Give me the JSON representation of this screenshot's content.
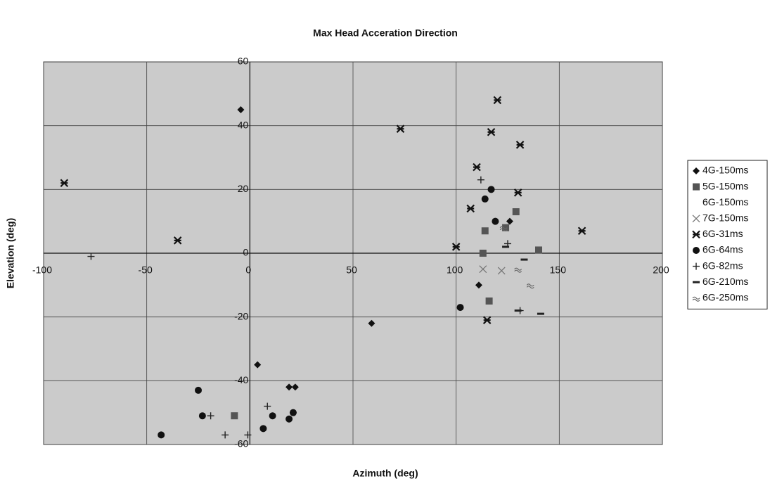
{
  "chart_data": {
    "type": "scatter",
    "title": "Max Head Acceration Direction",
    "x_label": "Azimuth (deg)",
    "y_label": "Elevation (deg)",
    "xlim": [
      -100,
      200
    ],
    "ylim": [
      -60,
      60
    ],
    "xticks": [
      -100,
      -50,
      0,
      50,
      100,
      150,
      200
    ],
    "yticks": [
      -60,
      -40,
      -20,
      0,
      20,
      40,
      60
    ],
    "grid": true,
    "legend": "right",
    "series": [
      {
        "name": "4G-150ms",
        "marker": "diamond",
        "color": "#111111",
        "x": [
          -4.4,
          59,
          3.7,
          111,
          126,
          19,
          22
        ],
        "y": [
          45,
          -22,
          -35,
          -10,
          10,
          -42,
          -42
        ]
      },
      {
        "name": "5G-150ms",
        "marker": "square",
        "color": "#555555",
        "x": [
          116,
          114,
          124,
          129,
          140,
          -7.5,
          113
        ],
        "y": [
          -15,
          7,
          8,
          13,
          1,
          -51,
          0
        ]
      },
      {
        "name": "6G-150ms",
        "marker": "none",
        "color": "#bbbbbb",
        "x": [],
        "y": []
      },
      {
        "name": "7G-150ms",
        "marker": "x",
        "color": "#777777",
        "x": [
          113,
          122
        ],
        "y": [
          -5,
          -5.5
        ]
      },
      {
        "name": "6G-31ms",
        "marker": "asterisk",
        "color": "#111111",
        "x": [
          -90,
          -35,
          73,
          100,
          107,
          110,
          117,
          120,
          131,
          130,
          161,
          115
        ],
        "y": [
          22,
          4,
          39,
          2,
          14,
          27,
          38,
          48,
          34,
          19,
          7,
          -21
        ]
      },
      {
        "name": "6G-64ms",
        "marker": "circle",
        "color": "#111111",
        "x": [
          117,
          114,
          119,
          102,
          -25,
          -23,
          -43,
          6.5,
          11,
          19,
          21
        ],
        "y": [
          20,
          17,
          10,
          -17,
          -43,
          -51,
          -57,
          -55,
          -51,
          -52,
          -50
        ]
      },
      {
        "name": "6G-82ms",
        "marker": "plus",
        "color": "#222222",
        "x": [
          -77,
          112,
          -19,
          8.5,
          -12,
          -1,
          131,
          125
        ],
        "y": [
          -1,
          23,
          -51,
          -48,
          -57,
          -57,
          -18,
          3
        ]
      },
      {
        "name": "6G-210ms",
        "marker": "dash",
        "color": "#222222",
        "x": [
          130,
          141,
          124,
          133
        ],
        "y": [
          -18,
          -19,
          2,
          -2
        ]
      },
      {
        "name": "6G-250ms",
        "marker": "wave",
        "color": "#666666",
        "x": [
          123,
          130,
          136
        ],
        "y": [
          8,
          -5,
          -10
        ]
      }
    ]
  }
}
